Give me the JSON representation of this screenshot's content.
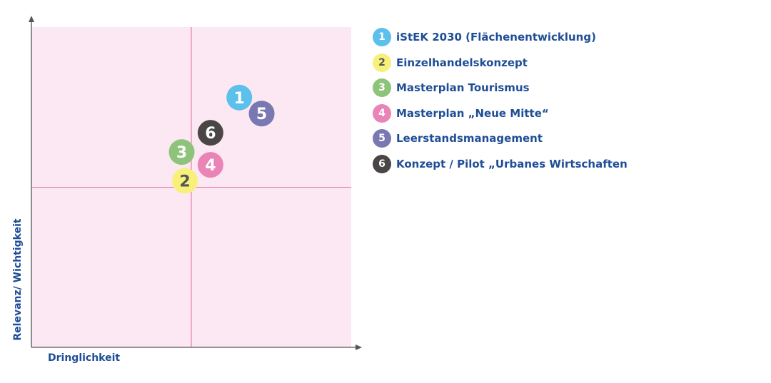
{
  "chart_data": {
    "type": "scatter",
    "xlabel": "Dringlichkeit",
    "ylabel": "Relevanz/ Wichtigkeit",
    "xlim": [
      0,
      100
    ],
    "ylim": [
      0,
      100
    ],
    "grid": false,
    "legend_position": "right",
    "quadrant_dividers": {
      "x": 50,
      "y": 50
    },
    "points": [
      {
        "id": "1",
        "label": "iStEK 2030 (Flächenentwicklung)",
        "x": 65,
        "y": 78,
        "color": "#5bc0eb",
        "text_color": "#ffffff"
      },
      {
        "id": "2",
        "label": "Einzelhandelskonzept",
        "x": 48,
        "y": 52,
        "color": "#f7f07a",
        "text_color": "#555555"
      },
      {
        "id": "3",
        "label": "Masterplan Tourismus",
        "x": 47,
        "y": 61,
        "color": "#8dc47a",
        "text_color": "#ffffff"
      },
      {
        "id": "4",
        "label": "Masterplan „Neue Mitte“",
        "x": 56,
        "y": 57,
        "color": "#ea83b6",
        "text_color": "#ffffff"
      },
      {
        "id": "5",
        "label": "Leerstandsmanagement",
        "x": 72,
        "y": 73,
        "color": "#7a78b2",
        "text_color": "#ffffff"
      },
      {
        "id": "6",
        "label": "Konzept / Pilot „Urbanes Wirtschaften",
        "x": 56,
        "y": 67,
        "color": "#4a4646",
        "text_color": "#ffffff"
      }
    ]
  },
  "colors": {
    "quadrant_fill": "#fce8f2",
    "divider_line": "#e26b9d",
    "axis": "#555555",
    "text": "#1f4e96"
  }
}
